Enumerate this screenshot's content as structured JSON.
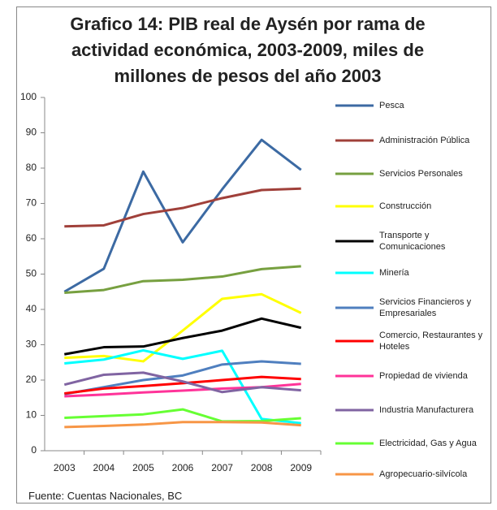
{
  "chart_data": {
    "type": "line",
    "title": "Grafico 14: PIB real de Aysén por rama de actividad económica, 2003-2009, miles de millones de pesos del año 2003",
    "source": "Fuente: Cuentas Nacionales, BC",
    "categories": [
      "2003",
      "2004",
      "2005",
      "2006",
      "2007",
      "2008",
      "2009"
    ],
    "ylim": [
      0,
      100
    ],
    "yticks": [
      0,
      10,
      20,
      30,
      40,
      50,
      60,
      70,
      80,
      90,
      100
    ],
    "grid": false,
    "series": [
      {
        "name": "Pesca",
        "color": "#3c6aa3",
        "values": [
          45,
          51.5,
          79,
          59,
          74,
          88,
          79.5
        ]
      },
      {
        "name": "Administración Pública",
        "color": "#a0403a",
        "values": [
          63.5,
          63.8,
          67,
          68.7,
          71.5,
          73.8,
          74.2
        ]
      },
      {
        "name": "Servicios Personales",
        "color": "#77a040",
        "values": [
          44.7,
          45.5,
          48,
          48.4,
          49.3,
          51.4,
          52.2
        ]
      },
      {
        "name": "Construcción",
        "color": "#ffff00",
        "values": [
          26.3,
          26.8,
          25.3,
          34,
          43,
          44.3,
          39
        ]
      },
      {
        "name": "Transporte y Comunicaciones",
        "color": "#000000",
        "values": [
          27.3,
          29.3,
          29.5,
          31.9,
          34,
          37.4,
          34.8
        ]
      },
      {
        "name": "Minería",
        "color": "#00ffff",
        "values": [
          24.7,
          25.8,
          28.4,
          26,
          28.3,
          9,
          7.8
        ]
      },
      {
        "name": "Servicios Financieros y Empresariales",
        "color": "#4f7fbf",
        "values": [
          16,
          18,
          20,
          21.3,
          24.4,
          25.3,
          24.6
        ]
      },
      {
        "name": "Comercio, Restaurantes y Hoteles",
        "color": "#ff0000",
        "values": [
          16.2,
          17.6,
          18.3,
          19.1,
          20,
          20.9,
          20.3
        ]
      },
      {
        "name": "Propiedad de vivienda",
        "color": "#ff3399",
        "values": [
          15.4,
          15.9,
          16.5,
          17,
          17.6,
          18,
          18.9
        ]
      },
      {
        "name": "Industria Manufacturera",
        "color": "#8064a2",
        "values": [
          18.7,
          21.5,
          22.1,
          19.6,
          16.6,
          18,
          17.1
        ]
      },
      {
        "name": "Electricidad, Gas y Agua",
        "color": "#66ff33",
        "values": [
          9.3,
          9.8,
          10.3,
          11.7,
          8.3,
          8.4,
          9.2
        ]
      },
      {
        "name": "Agropecuario-silvícola",
        "color": "#f79646",
        "values": [
          6.7,
          7,
          7.4,
          8.1,
          8.1,
          8,
          7.2
        ]
      }
    ]
  }
}
